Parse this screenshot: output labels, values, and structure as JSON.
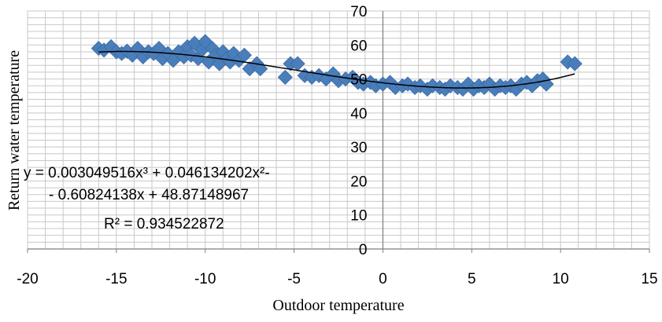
{
  "chart_data": {
    "type": "scatter",
    "xlabel": "Outdoor temperature",
    "ylabel": "Return water  temperature",
    "xlim": [
      -20,
      15
    ],
    "ylim": [
      0,
      70
    ],
    "x_ticks": [
      "-20",
      "-15",
      "-10",
      "-5",
      "0",
      "5",
      "10",
      "15"
    ],
    "y_ticks": [
      "0",
      "10",
      "20",
      "30",
      "40",
      "50",
      "60",
      "70"
    ],
    "grid": true,
    "marker_color": "#4a7ebb",
    "trendline_color": "#000000",
    "trendline": {
      "type": "polynomial",
      "coefficients": [
        0.003049516,
        0.046134202,
        -0.60824138,
        48.87148967
      ],
      "x_range": [
        -16,
        10.8
      ]
    },
    "equation_lines": [
      "y = 0.003049516x³ + 0.046134202x²-",
      "- 0.60824138x + 48.87148967",
      "R² = 0.934522872"
    ],
    "points": [
      [
        -16,
        59
      ],
      [
        -15.7,
        58.5
      ],
      [
        -15.3,
        59.5
      ],
      [
        -15,
        58
      ],
      [
        -14.7,
        57.5
      ],
      [
        -14.4,
        58.2
      ],
      [
        -14.1,
        57
      ],
      [
        -13.8,
        59
      ],
      [
        -13.5,
        56.5
      ],
      [
        -13.2,
        58
      ],
      [
        -12.9,
        57.5
      ],
      [
        -12.6,
        59
      ],
      [
        -12.4,
        56
      ],
      [
        -12.1,
        57.5
      ],
      [
        -11.8,
        55.5
      ],
      [
        -11.5,
        58
      ],
      [
        -11.2,
        56.5
      ],
      [
        -11,
        59.5
      ],
      [
        -10.8,
        57
      ],
      [
        -10.6,
        60.5
      ],
      [
        -10.4,
        56
      ],
      [
        -10.2,
        58.5
      ],
      [
        -10,
        61
      ],
      [
        -9.8,
        55
      ],
      [
        -9.6,
        59
      ],
      [
        -9.4,
        57
      ],
      [
        -9.2,
        54.5
      ],
      [
        -9,
        58
      ],
      [
        -8.8,
        56
      ],
      [
        -8.6,
        55
      ],
      [
        -8.4,
        57.5
      ],
      [
        -8.1,
        55.5
      ],
      [
        -7.8,
        57
      ],
      [
        -7.5,
        53
      ],
      [
        -7.1,
        54.5
      ],
      [
        -6.9,
        53
      ],
      [
        -5.5,
        50.5
      ],
      [
        -5.2,
        54.5
      ],
      [
        -4.8,
        54.5
      ],
      [
        -4.4,
        51
      ],
      [
        -4,
        50.5
      ],
      [
        -3.6,
        51
      ],
      [
        -3.2,
        50
      ],
      [
        -2.8,
        51.5
      ],
      [
        -2.5,
        49.5
      ],
      [
        -2.1,
        50
      ],
      [
        -1.7,
        50.5
      ],
      [
        -1.4,
        49
      ],
      [
        -1.1,
        48.5
      ],
      [
        -0.7,
        49
      ],
      [
        -0.4,
        48
      ],
      [
        0,
        48.5
      ],
      [
        0.4,
        49
      ],
      [
        0.7,
        47.5
      ],
      [
        1.1,
        48
      ],
      [
        1.4,
        48.5
      ],
      [
        1.8,
        47.5
      ],
      [
        2.1,
        48
      ],
      [
        2.5,
        47
      ],
      [
        2.8,
        48
      ],
      [
        3.2,
        47.5
      ],
      [
        3.5,
        47
      ],
      [
        3.8,
        48
      ],
      [
        4.2,
        47.5
      ],
      [
        4.5,
        47
      ],
      [
        4.8,
        48.5
      ],
      [
        5.1,
        47
      ],
      [
        5.4,
        48
      ],
      [
        5.7,
        47.5
      ],
      [
        6,
        48.5
      ],
      [
        6.3,
        47
      ],
      [
        6.6,
        48
      ],
      [
        6.9,
        47.5
      ],
      [
        7.2,
        48
      ],
      [
        7.5,
        47
      ],
      [
        7.8,
        48.5
      ],
      [
        8.1,
        49
      ],
      [
        8.4,
        48
      ],
      [
        8.7,
        49.5
      ],
      [
        9,
        50
      ],
      [
        9.2,
        48.5
      ],
      [
        10.4,
        55
      ],
      [
        10.8,
        54.5
      ]
    ]
  }
}
